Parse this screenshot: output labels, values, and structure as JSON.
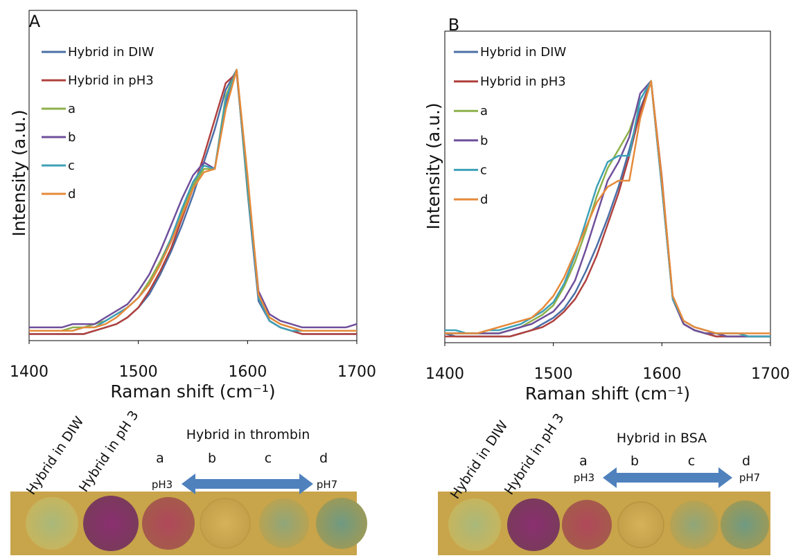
{
  "chart_data": [
    {
      "type": "line",
      "title": "A",
      "x_label": "Raman shift (cm⁻¹)",
      "y_label": "Intensity (a.u.)",
      "x": [
        1400,
        1410,
        1420,
        1430,
        1440,
        1450,
        1460,
        1470,
        1480,
        1490,
        1500,
        1510,
        1520,
        1530,
        1540,
        1550,
        1560,
        1570,
        1580,
        1590,
        1600,
        1610,
        1620,
        1630,
        1640,
        1650,
        1660,
        1670,
        1680,
        1690,
        1700
      ],
      "xlim": [
        1400,
        1700
      ],
      "xticks": [
        1400,
        1500,
        1600,
        1700
      ],
      "ylim": [
        0,
        1
      ],
      "legend": "upper-left",
      "series": [
        {
          "name": "Hybrid in DIW",
          "color": "#4a6fa5",
          "values": [
            0.02,
            0.02,
            0.02,
            0.02,
            0.02,
            0.02,
            0.03,
            0.04,
            0.05,
            0.07,
            0.1,
            0.14,
            0.2,
            0.27,
            0.35,
            0.44,
            0.54,
            0.64,
            0.76,
            0.82,
            0.45,
            0.12,
            0.06,
            0.04,
            0.03,
            0.02,
            0.02,
            0.02,
            0.02,
            0.02,
            0.02
          ]
        },
        {
          "name": "Hybrid in pH3",
          "color": "#b0413e",
          "values": [
            0.02,
            0.02,
            0.02,
            0.02,
            0.02,
            0.02,
            0.03,
            0.04,
            0.05,
            0.07,
            0.1,
            0.15,
            0.21,
            0.28,
            0.37,
            0.46,
            0.56,
            0.67,
            0.78,
            0.81,
            0.47,
            0.13,
            0.06,
            0.04,
            0.03,
            0.02,
            0.02,
            0.02,
            0.02,
            0.02,
            0.02
          ]
        },
        {
          "name": "a",
          "color": "#8db04a",
          "values": [
            0.03,
            0.03,
            0.03,
            0.03,
            0.04,
            0.04,
            0.05,
            0.06,
            0.08,
            0.1,
            0.13,
            0.18,
            0.24,
            0.31,
            0.39,
            0.47,
            0.52,
            0.52,
            0.74,
            0.82,
            0.46,
            0.14,
            0.07,
            0.05,
            0.04,
            0.03,
            0.03,
            0.03,
            0.03,
            0.03,
            0.03
          ]
        },
        {
          "name": "b",
          "color": "#6f4f9b",
          "values": [
            0.04,
            0.04,
            0.04,
            0.04,
            0.05,
            0.05,
            0.05,
            0.07,
            0.09,
            0.11,
            0.15,
            0.2,
            0.27,
            0.35,
            0.43,
            0.5,
            0.54,
            0.52,
            0.72,
            0.82,
            0.48,
            0.15,
            0.08,
            0.06,
            0.05,
            0.04,
            0.04,
            0.04,
            0.04,
            0.04,
            0.05
          ]
        },
        {
          "name": "c",
          "color": "#3ea0b8",
          "values": [
            0.03,
            0.03,
            0.03,
            0.03,
            0.03,
            0.04,
            0.04,
            0.06,
            0.08,
            0.1,
            0.13,
            0.17,
            0.23,
            0.31,
            0.4,
            0.48,
            0.53,
            0.52,
            0.73,
            0.82,
            0.47,
            0.13,
            0.06,
            0.04,
            0.03,
            0.03,
            0.03,
            0.03,
            0.03,
            0.03,
            0.03
          ]
        },
        {
          "name": "d",
          "color": "#e58a3a",
          "values": [
            0.03,
            0.03,
            0.03,
            0.03,
            0.03,
            0.04,
            0.04,
            0.05,
            0.07,
            0.1,
            0.13,
            0.17,
            0.23,
            0.3,
            0.38,
            0.46,
            0.51,
            0.52,
            0.7,
            0.82,
            0.5,
            0.14,
            0.07,
            0.05,
            0.04,
            0.03,
            0.03,
            0.03,
            0.03,
            0.03,
            0.03
          ]
        }
      ]
    },
    {
      "type": "line",
      "title": "B",
      "x_label": "Raman shift (cm⁻¹)",
      "y_label": "Intensity (a.u.)",
      "x": [
        1400,
        1410,
        1420,
        1430,
        1440,
        1450,
        1460,
        1470,
        1480,
        1490,
        1500,
        1510,
        1520,
        1530,
        1540,
        1550,
        1560,
        1570,
        1580,
        1590,
        1600,
        1610,
        1620,
        1630,
        1640,
        1650,
        1660,
        1670,
        1680,
        1690,
        1700
      ],
      "xlim": [
        1400,
        1700
      ],
      "xticks": [
        1400,
        1500,
        1600,
        1700
      ],
      "ylim": [
        0,
        1
      ],
      "legend": "upper-left",
      "series": [
        {
          "name": "Hybrid in DIW",
          "color": "#4a6fa5",
          "values": [
            0.03,
            0.02,
            0.02,
            0.02,
            0.02,
            0.02,
            0.02,
            0.03,
            0.04,
            0.06,
            0.08,
            0.11,
            0.16,
            0.23,
            0.31,
            0.4,
            0.5,
            0.62,
            0.75,
            0.84,
            0.52,
            0.14,
            0.06,
            0.04,
            0.03,
            0.02,
            0.02,
            0.02,
            0.02,
            0.02,
            0.02
          ]
        },
        {
          "name": "Hybrid in pH3",
          "color": "#b0413e",
          "values": [
            0.02,
            0.02,
            0.02,
            0.02,
            0.02,
            0.02,
            0.02,
            0.03,
            0.04,
            0.05,
            0.07,
            0.1,
            0.14,
            0.2,
            0.28,
            0.38,
            0.48,
            0.6,
            0.74,
            0.84,
            0.53,
            0.14,
            0.06,
            0.04,
            0.03,
            0.02,
            0.02,
            0.02,
            0.02,
            0.02,
            0.02
          ]
        },
        {
          "name": "a",
          "color": "#8db04a",
          "values": [
            0.03,
            0.03,
            0.03,
            0.03,
            0.03,
            0.03,
            0.04,
            0.05,
            0.07,
            0.09,
            0.12,
            0.18,
            0.26,
            0.36,
            0.47,
            0.56,
            0.62,
            0.68,
            0.78,
            0.84,
            0.5,
            0.14,
            0.06,
            0.04,
            0.03,
            0.03,
            0.02,
            0.02,
            0.02,
            0.02,
            0.02
          ]
        },
        {
          "name": "b",
          "color": "#6f4f9b",
          "values": [
            0.03,
            0.03,
            0.03,
            0.03,
            0.03,
            0.03,
            0.04,
            0.05,
            0.06,
            0.08,
            0.1,
            0.14,
            0.2,
            0.3,
            0.41,
            0.52,
            0.58,
            0.66,
            0.8,
            0.84,
            0.5,
            0.14,
            0.06,
            0.04,
            0.03,
            0.03,
            0.02,
            0.02,
            0.02,
            0.02,
            0.02
          ]
        },
        {
          "name": "c",
          "color": "#3ea0b8",
          "values": [
            0.04,
            0.04,
            0.03,
            0.03,
            0.04,
            0.04,
            0.05,
            0.06,
            0.08,
            0.1,
            0.13,
            0.19,
            0.28,
            0.39,
            0.5,
            0.58,
            0.6,
            0.6,
            0.78,
            0.84,
            0.5,
            0.14,
            0.07,
            0.05,
            0.04,
            0.03,
            0.03,
            0.03,
            0.02,
            0.02,
            0.02
          ]
        },
        {
          "name": "d",
          "color": "#e58a3a",
          "values": [
            0.03,
            0.03,
            0.03,
            0.03,
            0.04,
            0.05,
            0.06,
            0.07,
            0.08,
            0.11,
            0.15,
            0.21,
            0.29,
            0.37,
            0.45,
            0.5,
            0.52,
            0.52,
            0.72,
            0.84,
            0.52,
            0.15,
            0.07,
            0.05,
            0.04,
            0.03,
            0.03,
            0.03,
            0.03,
            0.03,
            0.03
          ]
        }
      ]
    }
  ],
  "photos": [
    {
      "sample_labels": [
        "Hybrid in DIW",
        "Hybrid in pH 3"
      ],
      "group_label": "Hybrid in thrombin",
      "letters": [
        "a",
        "b",
        "c",
        "d"
      ],
      "ph_left": "pH3",
      "ph_right": "pH7"
    },
    {
      "sample_labels": [
        "Hybrid in DIW",
        "Hybrid in pH 3"
      ],
      "group_label": "Hybrid in BSA",
      "letters": [
        "a",
        "b",
        "c",
        "d"
      ],
      "ph_left": "pH3",
      "ph_right": "pH7"
    }
  ]
}
